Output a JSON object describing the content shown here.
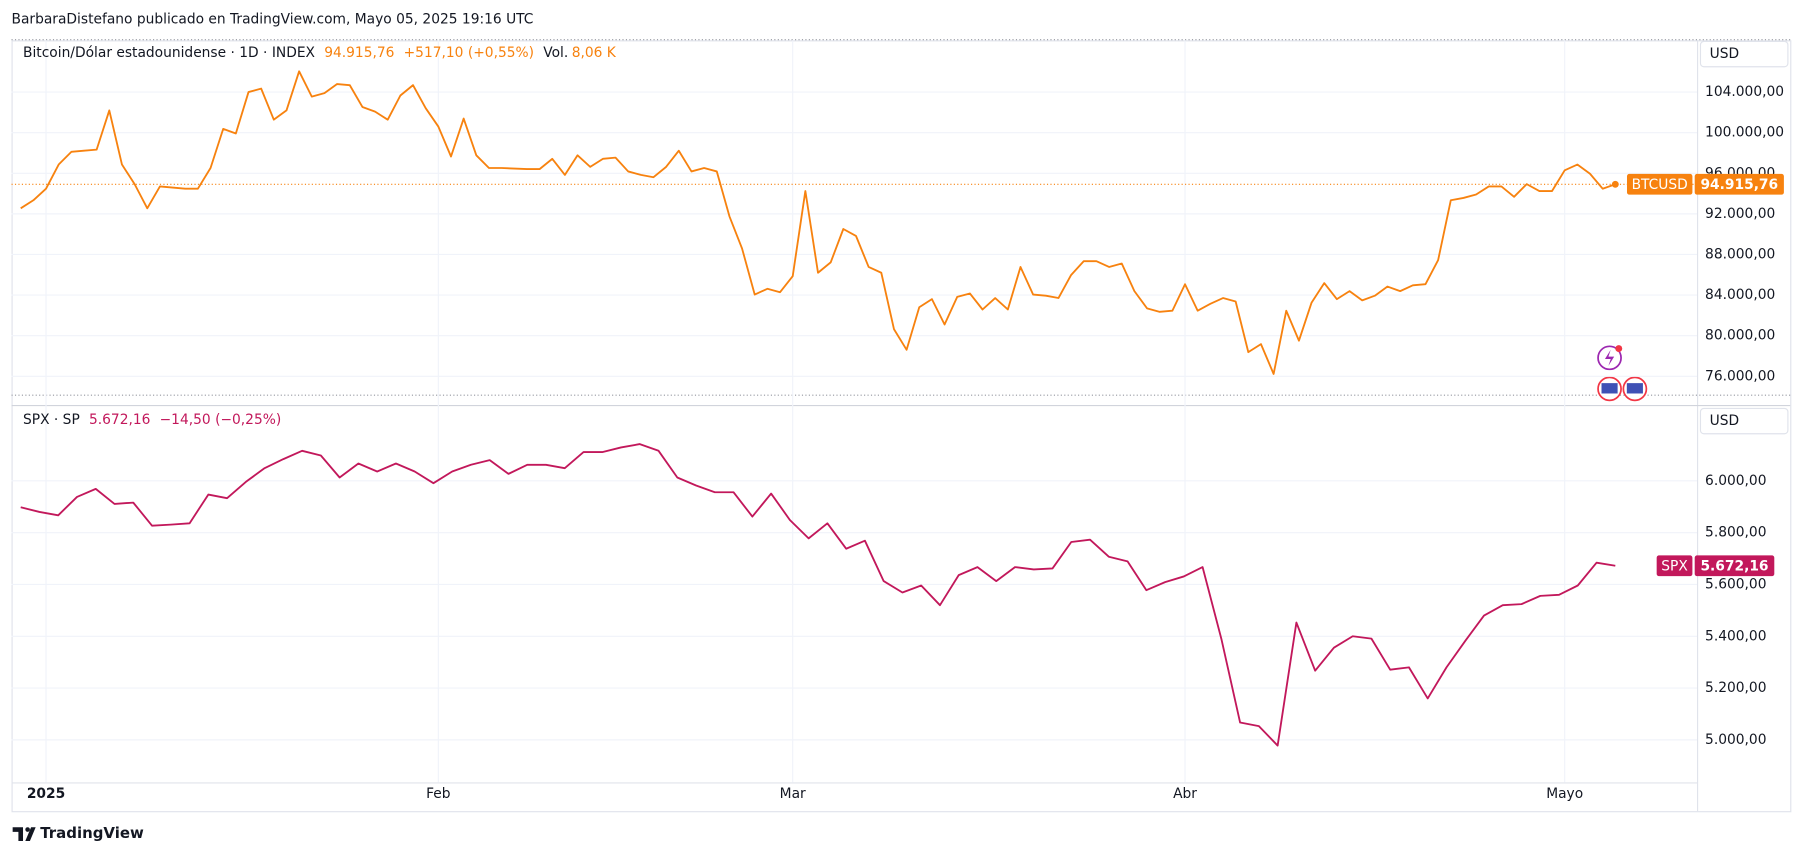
{
  "header": {
    "attribution": "BarbaraDistefano publicado en TradingView.com, Mayo 05, 2025 19:16 UTC"
  },
  "footer": {
    "logo": "TradingView"
  },
  "chart_data": [
    {
      "type": "line",
      "title": "Bitcoin/Dólar estadounidense · 1D · INDEX",
      "change": "+517,10 (+0,55%)",
      "volume_label": "Vol.",
      "volume": "8,06 K",
      "currency": "USD",
      "last_price": {
        "value": 94915.76,
        "label": "94.915,76"
      },
      "price_line": true,
      "categories": [
        null,
        null,
        "2025",
        null,
        null,
        null,
        null,
        null,
        null,
        null,
        null,
        null,
        null,
        null,
        null,
        null,
        null,
        null,
        null,
        null,
        null,
        null,
        null,
        null,
        null,
        null,
        null,
        null,
        null,
        null,
        null,
        null,
        null,
        "Feb",
        null,
        null,
        null,
        null,
        null,
        null,
        null,
        null,
        null,
        null,
        null,
        null,
        null,
        null,
        null,
        null,
        null,
        null,
        null,
        null,
        null,
        null,
        null,
        null,
        null,
        null,
        null,
        "Mar",
        null,
        null,
        null,
        null,
        null,
        null,
        null,
        null,
        null,
        null,
        null,
        null,
        null,
        null,
        null,
        null,
        null,
        null,
        null,
        null,
        null,
        null,
        null,
        null,
        null,
        null,
        null,
        null,
        null,
        null,
        "Abr",
        null,
        null,
        null,
        null,
        null,
        null,
        null,
        null,
        null,
        null,
        null,
        null,
        null,
        null,
        null,
        null,
        null,
        null,
        null,
        null,
        null,
        null,
        null,
        null,
        null,
        null,
        null,
        null,
        null,
        "Mayo",
        null,
        null,
        null,
        null
      ],
      "series": [
        {
          "name": "BTCUSD",
          "color": "#f7820f",
          "values": [
            92550,
            93340,
            94480,
            96860,
            98110,
            98220,
            98330,
            102190,
            96860,
            94930,
            92550,
            94700,
            94590,
            94480,
            94480,
            96520,
            100370,
            99920,
            104000,
            104340,
            101280,
            102190,
            106040,
            103550,
            103890,
            104790,
            104680,
            102530,
            102070,
            101280,
            103660,
            104680,
            102410,
            100600,
            97650,
            101390,
            97770,
            96520,
            96520,
            96460,
            96410,
            96410,
            97420,
            95840,
            97770,
            96630,
            97420,
            97540,
            96180,
            95840,
            95610,
            96630,
            98220,
            96180,
            96520,
            96180,
            91760,
            88580,
            84050,
            84620,
            84280,
            85860,
            94250,
            86200,
            87220,
            90510,
            89830,
            86770,
            86200,
            80650,
            78610,
            82800,
            83600,
            81100,
            83820,
            84160,
            82580,
            83710,
            82580,
            86770,
            84050,
            83940,
            83710,
            85980,
            87340,
            87340,
            86770,
            87110,
            84390,
            82690,
            82350,
            82460,
            85070,
            82460,
            83140,
            83710,
            83370,
            78380,
            79170,
            76230,
            82460,
            79510,
            83260,
            85180,
            83600,
            84390,
            83480,
            83940,
            84840,
            84390,
            84960,
            85070,
            87450,
            93340,
            93570,
            93910,
            94700,
            94700,
            93680,
            94930,
            94250,
            94250,
            96290,
            96860,
            95950,
            94480,
            94915.76
          ]
        }
      ],
      "ylim": [
        73400,
        109100
      ],
      "yticks": [
        {
          "value": 76000,
          "label": "76.000,00"
        },
        {
          "value": 80000,
          "label": "80.000,00"
        },
        {
          "value": 84000,
          "label": "84.000,00"
        },
        {
          "value": 88000,
          "label": "88.000,00"
        },
        {
          "value": 92000,
          "label": "92.000,00"
        },
        {
          "value": 96000,
          "label": "96.000,00"
        },
        {
          "value": 100000,
          "label": "100.000,00"
        },
        {
          "value": 104000,
          "label": "104.000,00"
        }
      ],
      "grid": true
    },
    {
      "type": "line",
      "title": "SPX · SP",
      "change": "−14,50 (−0,25%)",
      "currency": "USD",
      "last_price": {
        "value": 5672.16,
        "label": "5.672,16"
      },
      "price_line": false,
      "series": [
        {
          "name": "SPX",
          "color": "#c2185b",
          "values": [
            5898,
            5880,
            5867,
            5938,
            5969,
            5911,
            5916,
            5827,
            5831,
            5836,
            5947,
            5933,
            5996,
            6049,
            6084,
            6116,
            6098,
            6013,
            6067,
            6036,
            6067,
            6036,
            5991,
            6036,
            6062,
            6080,
            6027,
            6062,
            6062,
            6049,
            6111,
            6111,
            6129,
            6142,
            6116,
            6013,
            5982,
            5956,
            5956,
            5862,
            5951,
            5849,
            5778,
            5836,
            5738,
            5769,
            5613,
            5569,
            5596,
            5520,
            5636,
            5667,
            5613,
            5667,
            5658,
            5662,
            5764,
            5773,
            5707,
            5689,
            5578,
            5609,
            5631,
            5667,
            5390,
            5067,
            5053,
            4978,
            5453,
            5267,
            5356,
            5400,
            5391,
            5271,
            5280,
            5160,
            5280,
            5382,
            5480,
            5520,
            5524,
            5556,
            5560,
            5596,
            5684,
            5672.16
          ]
        }
      ],
      "ylim": [
        4836,
        6284
      ],
      "yticks": [
        {
          "value": 5000,
          "label": "5.000,00"
        },
        {
          "value": 5200,
          "label": "5.200,00"
        },
        {
          "value": 5400,
          "label": "5.400,00"
        },
        {
          "value": 5600,
          "label": "5.600,00"
        },
        {
          "value": 5800,
          "label": "5.800,00"
        },
        {
          "value": 6000,
          "label": "6.000,00"
        }
      ],
      "grid": true
    }
  ]
}
